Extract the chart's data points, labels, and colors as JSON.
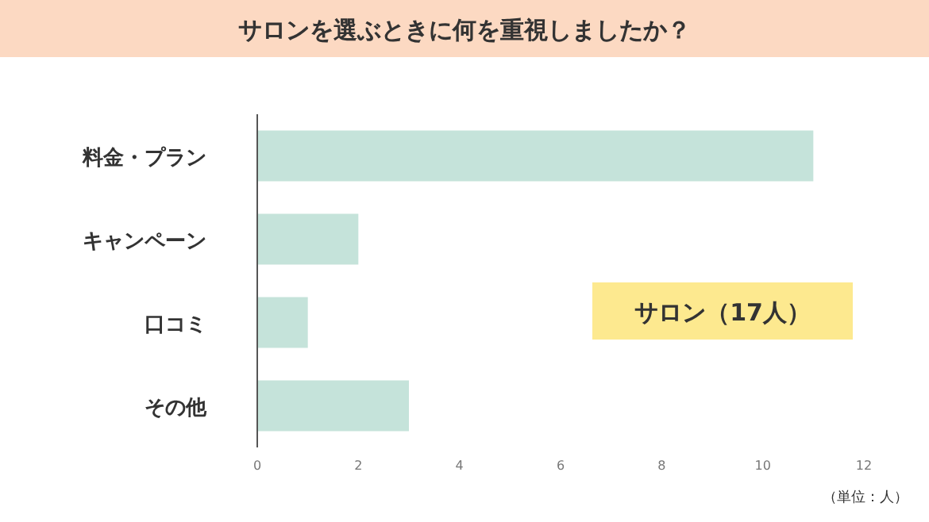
{
  "chart_data": {
    "type": "bar",
    "orientation": "horizontal",
    "title": "サロンを選ぶときに何を重視しましたか？",
    "categories": [
      "料金・プラン",
      "キャンペーン",
      "口コミ",
      "その他"
    ],
    "values": [
      11,
      2,
      1,
      3
    ],
    "color": "#c5e3da",
    "xlim": [
      0,
      12
    ],
    "xticks": [
      0,
      2,
      4,
      6,
      8,
      10,
      12
    ],
    "annotations": [
      "サロン（17人）",
      "（単位：人）"
    ]
  }
}
